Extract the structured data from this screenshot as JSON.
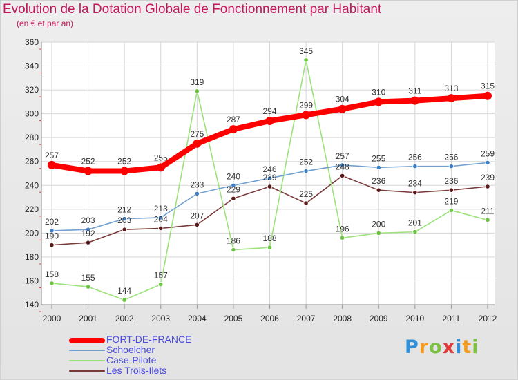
{
  "header": {
    "title": "Evolution de la Dotation Globale de Fonctionnement par Habitant",
    "subtitle": "(en € et par an)"
  },
  "logo": {
    "text": "Proxiti",
    "letters": [
      "P",
      "r",
      "o",
      "x",
      "i",
      "t",
      "i"
    ]
  },
  "chart_data": {
    "type": "line",
    "title": "Evolution de la Dotation Globale de Fonctionnement par Habitant",
    "subtitle": "(en € et par an)",
    "xlabel": "",
    "ylabel": "",
    "ylim": [
      140,
      360
    ],
    "yticks": [
      140,
      160,
      180,
      200,
      220,
      240,
      260,
      280,
      300,
      320,
      340,
      360
    ],
    "grid": true,
    "legend_position": "bottom-left",
    "categories": [
      "2000",
      "2001",
      "2002",
      "2003",
      "2004",
      "2005",
      "2006",
      "2007",
      "2008",
      "2009",
      "2010",
      "2011",
      "2012"
    ],
    "series": [
      {
        "name": "FORT-DE-FRANCE",
        "color": "#ff0000",
        "values": [
          257,
          252,
          252,
          255,
          275,
          287,
          294,
          299,
          304,
          310,
          311,
          313,
          315
        ]
      },
      {
        "name": "Schoelcher",
        "color": "#6fa0d0",
        "values": [
          202,
          203,
          212,
          213,
          233,
          240,
          246,
          252,
          257,
          255,
          256,
          256,
          259
        ]
      },
      {
        "name": "Case-Pilote",
        "color": "#9be27a",
        "values": [
          158,
          155,
          144,
          157,
          319,
          186,
          188,
          345,
          196,
          200,
          201,
          219,
          211
        ]
      },
      {
        "name": "Les Trois-Ilets",
        "color": "#7a3a3a",
        "values": [
          190,
          192,
          203,
          204,
          207,
          229,
          239,
          225,
          248,
          236,
          234,
          236,
          239
        ]
      }
    ]
  }
}
